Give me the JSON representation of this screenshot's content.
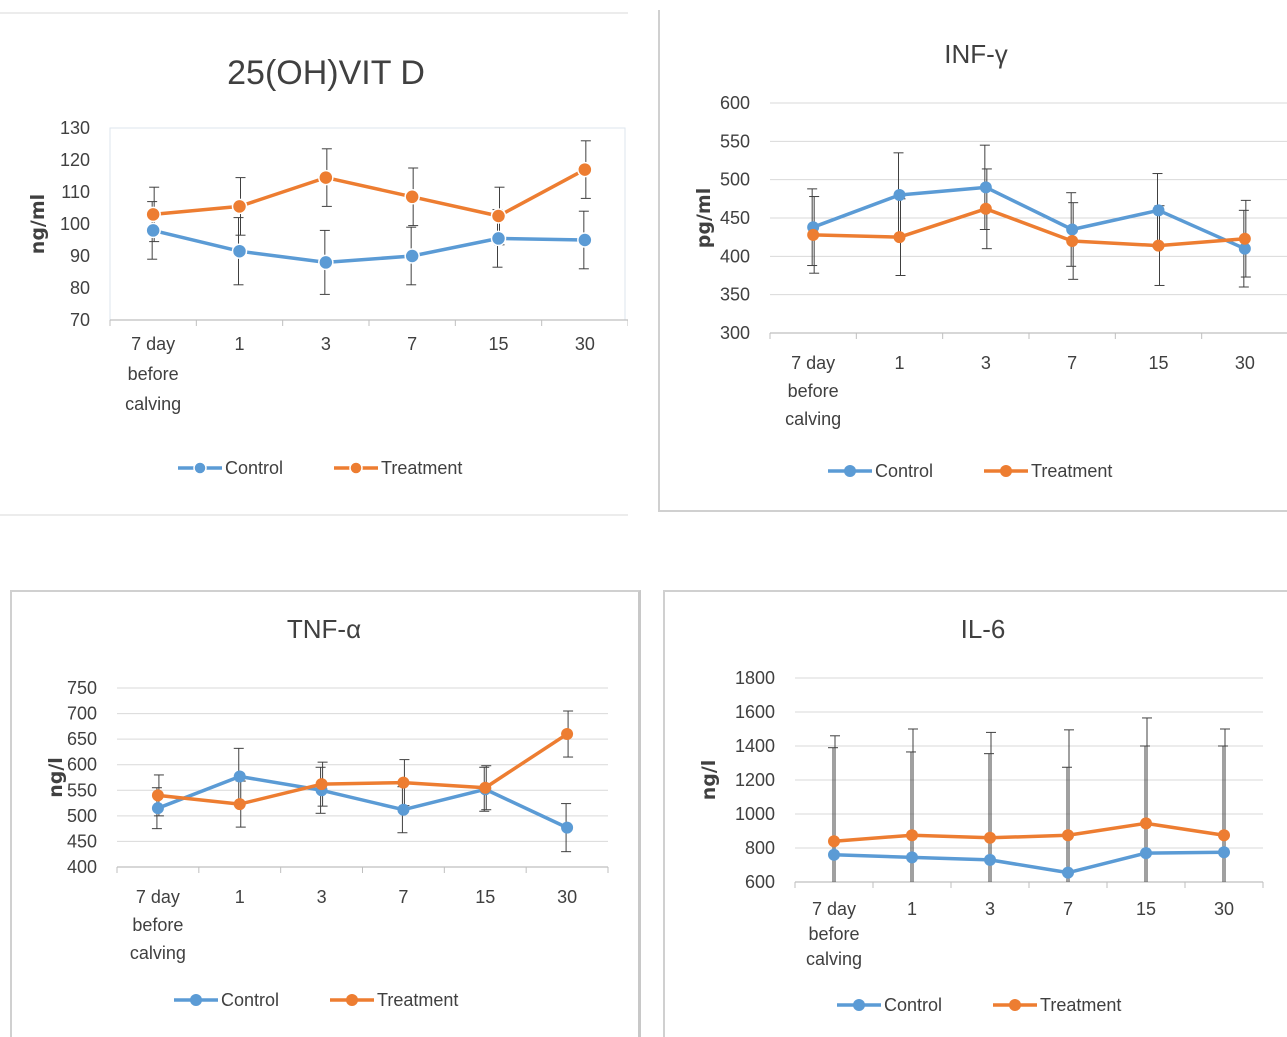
{
  "colors": {
    "control": "#5B9BD5",
    "treatment": "#ED7D31",
    "error_bar": "#404040",
    "grid": "#d9d9d9"
  },
  "legend": {
    "control": "Control",
    "treatment": "Treatment"
  },
  "chart_data": [
    {
      "type": "line",
      "title": "25(OH)VIT D",
      "ylabel": "ng/ml",
      "xlabel": "",
      "categories": [
        [
          "7 day",
          "before",
          "calving"
        ],
        [
          "1"
        ],
        [
          "3"
        ],
        [
          "7"
        ],
        [
          "15"
        ],
        [
          "30"
        ]
      ],
      "ylim": [
        70,
        130
      ],
      "yticks": [
        70,
        80,
        90,
        100,
        110,
        120,
        130
      ],
      "grid": false,
      "legend_position": "bottom",
      "series": [
        {
          "name": "Control",
          "values": [
            98,
            91.5,
            88,
            90,
            95.5,
            95
          ],
          "errors": [
            9,
            10.5,
            10,
            9,
            9,
            9
          ]
        },
        {
          "name": "Treatment",
          "values": [
            103,
            105.5,
            114.5,
            108.5,
            102.5,
            117
          ],
          "errors": [
            8.5,
            9,
            9,
            9,
            9,
            9
          ]
        }
      ]
    },
    {
      "type": "line",
      "title": "INF-γ",
      "ylabel": "pg/ml",
      "xlabel": "",
      "categories": [
        [
          "7 day",
          "before",
          "calving"
        ],
        [
          "1"
        ],
        [
          "3"
        ],
        [
          "7"
        ],
        [
          "15"
        ],
        [
          "30"
        ]
      ],
      "ylim": [
        300,
        600
      ],
      "yticks": [
        300,
        350,
        400,
        450,
        500,
        550,
        600
      ],
      "grid": true,
      "legend_position": "bottom",
      "series": [
        {
          "name": "Control",
          "values": [
            438,
            480,
            490,
            435,
            460,
            410
          ],
          "errors": [
            50,
            55,
            55,
            48,
            48,
            50
          ]
        },
        {
          "name": "Treatment",
          "values": [
            428,
            425,
            462,
            420,
            414,
            423
          ],
          "errors": [
            50,
            50,
            52,
            50,
            52,
            50
          ]
        }
      ]
    },
    {
      "type": "line",
      "title": "TNF-α",
      "ylabel": "ng/l",
      "xlabel": "",
      "categories": [
        [
          "7 day",
          "before",
          "calving"
        ],
        [
          "1"
        ],
        [
          "3"
        ],
        [
          "7"
        ],
        [
          "15"
        ],
        [
          "30"
        ]
      ],
      "ylim": [
        400,
        750
      ],
      "yticks": [
        400,
        450,
        500,
        550,
        600,
        650,
        700,
        750
      ],
      "grid": true,
      "legend_position": "bottom",
      "series": [
        {
          "name": "Control",
          "values": [
            515,
            577,
            550,
            512,
            552,
            477
          ],
          "errors": [
            40,
            55,
            45,
            45,
            43,
            47
          ]
        },
        {
          "name": "Treatment",
          "values": [
            540,
            523,
            562,
            565,
            555,
            660
          ],
          "errors": [
            40,
            45,
            43,
            45,
            43,
            45
          ]
        }
      ]
    },
    {
      "type": "line",
      "title": "IL-6",
      "ylabel": "ng/l",
      "xlabel": "",
      "categories": [
        [
          "7 day",
          "before",
          "calving"
        ],
        [
          "1"
        ],
        [
          "3"
        ],
        [
          "7"
        ],
        [
          "15"
        ],
        [
          "30"
        ]
      ],
      "ylim": [
        600,
        1800
      ],
      "yticks": [
        600,
        800,
        1000,
        1200,
        1400,
        1600,
        1800
      ],
      "grid": true,
      "legend_position": "bottom",
      "series": [
        {
          "name": "Control",
          "values": [
            760,
            745,
            730,
            655,
            770,
            775
          ],
          "errors": [
            630,
            620,
            625,
            620,
            630,
            625
          ]
        },
        {
          "name": "Treatment",
          "values": [
            840,
            875,
            860,
            875,
            945,
            875
          ],
          "errors": [
            620,
            625,
            620,
            620,
            620,
            625
          ]
        }
      ]
    }
  ]
}
